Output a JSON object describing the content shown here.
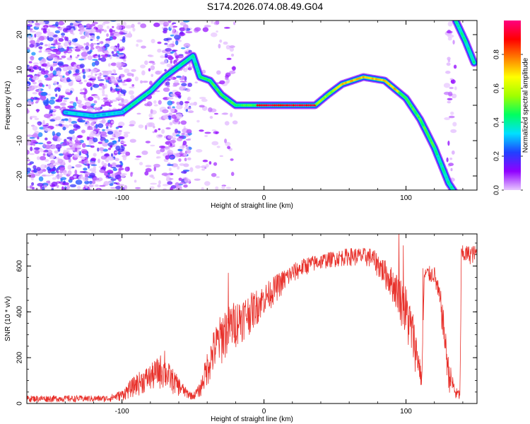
{
  "title": "S174.2026.074.08.49.G04",
  "chart_data": [
    {
      "type": "heatmap",
      "xlabel": "Height of straight line (km)",
      "ylabel": "Frequency (Hz)",
      "xlim": [
        -167,
        150
      ],
      "ylim": [
        -24,
        24
      ],
      "xticks": [
        -100,
        0,
        100
      ],
      "yticks": [
        -20,
        -10,
        0,
        10,
        20
      ],
      "colorbar": {
        "label": "Normalized spectral amplitude",
        "range": [
          0,
          1
        ],
        "ticks": [
          "0.0",
          "0.2",
          "0.4",
          "0.6",
          "0.8"
        ],
        "tick_values": [
          0.0,
          0.2,
          0.4,
          0.6,
          0.8
        ],
        "colors": [
          "#e8c8ff",
          "#9000ff",
          "#2040ff",
          "#00e0ff",
          "#00ff60",
          "#a0ff00",
          "#ffff00",
          "#ff8000",
          "#ff0000",
          "#ff0080"
        ]
      },
      "trace": [
        {
          "x": -140,
          "y": -2
        },
        {
          "x": -120,
          "y": -3
        },
        {
          "x": -100,
          "y": -2
        },
        {
          "x": -90,
          "y": 1
        },
        {
          "x": -80,
          "y": 4
        },
        {
          "x": -70,
          "y": 8
        },
        {
          "x": -60,
          "y": 11
        },
        {
          "x": -50,
          "y": 14
        },
        {
          "x": -45,
          "y": 8
        },
        {
          "x": -38,
          "y": 7
        },
        {
          "x": -30,
          "y": 3
        },
        {
          "x": -20,
          "y": 0
        },
        {
          "x": -10,
          "y": 0
        },
        {
          "x": 0,
          "y": 0
        },
        {
          "x": 20,
          "y": 0
        },
        {
          "x": 36,
          "y": 0
        },
        {
          "x": 45,
          "y": 3
        },
        {
          "x": 55,
          "y": 6
        },
        {
          "x": 70,
          "y": 8
        },
        {
          "x": 85,
          "y": 7
        },
        {
          "x": 100,
          "y": 2
        },
        {
          "x": 110,
          "y": -4
        },
        {
          "x": 120,
          "y": -12
        },
        {
          "x": 130,
          "y": -22
        },
        {
          "x": 135,
          "y": -25
        }
      ],
      "upper_trace": [
        {
          "x": 135,
          "y": 24
        },
        {
          "x": 142,
          "y": 18
        },
        {
          "x": 148,
          "y": 12
        }
      ]
    },
    {
      "type": "line",
      "xlabel": "Height of straight line (km)",
      "ylabel": "SNR (10 * v/v)",
      "xlim": [
        -167,
        150
      ],
      "ylim": [
        0,
        740
      ],
      "xticks": [
        -100,
        0,
        100
      ],
      "yticks": [
        0,
        200,
        400,
        600
      ],
      "series": [
        {
          "name": "SNR",
          "color": "#e8302a",
          "envelope": [
            {
              "x": -167,
              "lo": 5,
              "hi": 35
            },
            {
              "x": -110,
              "lo": 5,
              "hi": 35
            },
            {
              "x": -100,
              "lo": 10,
              "hi": 60
            },
            {
              "x": -90,
              "lo": 30,
              "hi": 130
            },
            {
              "x": -80,
              "lo": 50,
              "hi": 170
            },
            {
              "x": -72,
              "lo": 60,
              "hi": 220
            },
            {
              "x": -65,
              "lo": 40,
              "hi": 160
            },
            {
              "x": -55,
              "lo": 20,
              "hi": 70
            },
            {
              "x": -50,
              "lo": 15,
              "hi": 45
            },
            {
              "x": -45,
              "lo": 25,
              "hi": 90
            },
            {
              "x": -40,
              "lo": 70,
              "hi": 230
            },
            {
              "x": -35,
              "lo": 120,
              "hi": 330
            },
            {
              "x": -28,
              "lo": 180,
              "hi": 420
            },
            {
              "x": -20,
              "lo": 240,
              "hi": 450
            },
            {
              "x": -10,
              "lo": 300,
              "hi": 480
            },
            {
              "x": 0,
              "lo": 380,
              "hi": 520
            },
            {
              "x": 10,
              "lo": 450,
              "hi": 570
            },
            {
              "x": 20,
              "lo": 520,
              "hi": 610
            },
            {
              "x": 30,
              "lo": 560,
              "hi": 640
            },
            {
              "x": 45,
              "lo": 590,
              "hi": 660
            },
            {
              "x": 60,
              "lo": 600,
              "hi": 680
            },
            {
              "x": 75,
              "lo": 590,
              "hi": 680
            },
            {
              "x": 80,
              "lo": 550,
              "hi": 660
            },
            {
              "x": 88,
              "lo": 470,
              "hi": 610
            },
            {
              "x": 95,
              "lo": 380,
              "hi": 560
            },
            {
              "x": 100,
              "lo": 250,
              "hi": 520
            },
            {
              "x": 105,
              "lo": 160,
              "hi": 400
            },
            {
              "x": 110,
              "lo": 80,
              "hi": 200
            },
            {
              "x": 111,
              "lo": 60,
              "hi": 110
            },
            {
              "x": 113,
              "lo": 520,
              "hi": 600
            },
            {
              "x": 120,
              "lo": 520,
              "hi": 600
            },
            {
              "x": 125,
              "lo": 330,
              "hi": 480
            },
            {
              "x": 130,
              "lo": 50,
              "hi": 200
            },
            {
              "x": 135,
              "lo": 10,
              "hi": 70
            },
            {
              "x": 138,
              "lo": 10,
              "hi": 60
            },
            {
              "x": 139,
              "lo": 600,
              "hi": 690
            },
            {
              "x": 150,
              "lo": 610,
              "hi": 690
            }
          ],
          "spikes": [
            {
              "x": -70,
              "y": 230
            },
            {
              "x": -25,
              "y": 570
            },
            {
              "x": 95,
              "y": 740
            },
            {
              "x": 98,
              "y": 690
            },
            {
              "x": 112,
              "y": 590
            }
          ]
        }
      ]
    }
  ]
}
